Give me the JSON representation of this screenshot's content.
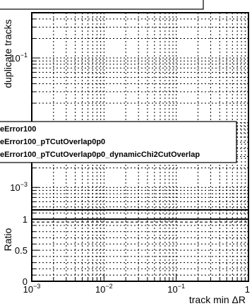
{
  "chart_data": [
    {
      "type": "line",
      "panel": "top",
      "ylabel": "duplicate tracks",
      "x_scale": "log",
      "y_scale": "log",
      "xlim": [
        0.001,
        1
      ],
      "ylim": [
        0.00045,
        0.5
      ],
      "y_tick_labels": [
        {
          "value": 0.1,
          "base": "10",
          "exp": "−1"
        },
        {
          "value": 0.001,
          "base": "10",
          "exp": "−3"
        }
      ],
      "legend": {
        "entries": [
          "eError100",
          "eError100_pTCutOverlap0p0",
          "eError100_pTCutOverlap0p0_dynamicChi2CutOverlap"
        ]
      },
      "series": [],
      "grid": true
    },
    {
      "type": "line",
      "panel": "ratio",
      "ylabel": "Ratio",
      "xlabel": "track min ΔR",
      "x_scale": "log",
      "xlim": [
        0.001,
        1
      ],
      "ylim": [
        0,
        1.15
      ],
      "y_tick_labels": [
        "0",
        "0.5",
        "1"
      ],
      "x_tick_labels": [
        {
          "value": 0.001,
          "base": "10",
          "exp": "−3"
        },
        {
          "value": 0.01,
          "base": "10",
          "exp": "−2"
        },
        {
          "value": 0.1,
          "base": "10",
          "exp": "−1"
        },
        {
          "value": 1,
          "base": "1",
          "exp": ""
        }
      ],
      "reference_line": 1.0,
      "series": [],
      "grid": true
    }
  ]
}
